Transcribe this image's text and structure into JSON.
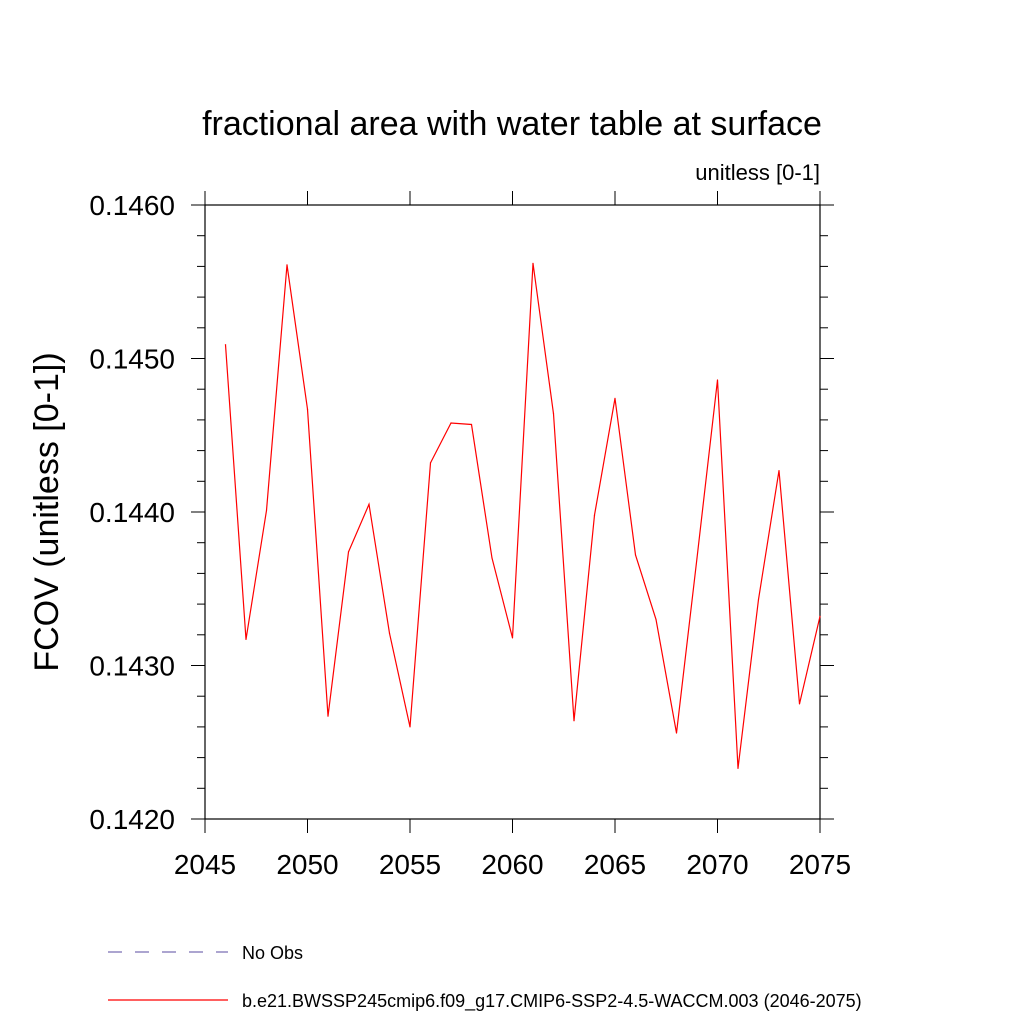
{
  "chart_data": {
    "type": "line",
    "title": "fractional area with water table at surface",
    "subtitle": "unitless [0-1]",
    "xlabel": "",
    "ylabel": "FCOV  (unitless [0-1])",
    "xlim": [
      2045,
      2075
    ],
    "ylim": [
      0.142,
      0.146
    ],
    "x_ticks": [
      2045,
      2050,
      2055,
      2060,
      2065,
      2070,
      2075
    ],
    "y_ticks": [
      0.142,
      0.143,
      0.144,
      0.145,
      0.146
    ],
    "x_tick_labels": [
      "2045",
      "2050",
      "2055",
      "2060",
      "2065",
      "2070",
      "2075"
    ],
    "y_tick_labels": [
      "0.1420",
      "0.1430",
      "0.1440",
      "0.1450",
      "0.1460"
    ],
    "grid": false,
    "series": [
      {
        "name": "b.e21.BWSSP245cmip6.f09_g17.CMIP6-SSP2-4.5-WACCM.003 (2046-2075)",
        "color": "#ff0000",
        "style": "solid",
        "x": [
          2046,
          2047,
          2048,
          2049,
          2050,
          2051,
          2052,
          2053,
          2054,
          2055,
          2056,
          2057,
          2058,
          2059,
          2060,
          2061,
          2062,
          2063,
          2064,
          2065,
          2066,
          2067,
          2068,
          2069,
          2070,
          2071,
          2072,
          2073,
          2074,
          2075
        ],
        "values": [
          0.14509,
          0.14317,
          0.14401,
          0.14561,
          0.14467,
          0.14267,
          0.14374,
          0.14405,
          0.14321,
          0.1426,
          0.14432,
          0.14458,
          0.14457,
          0.1437,
          0.14318,
          0.14562,
          0.14464,
          0.14264,
          0.14398,
          0.14474,
          0.14372,
          0.1433,
          0.14256,
          0.1437,
          0.14486,
          0.14233,
          0.14343,
          0.14427,
          0.14275,
          0.14332
        ]
      }
    ],
    "legend": [
      {
        "label": "No Obs",
        "color": "#7b6fb3",
        "style": "dashed"
      },
      {
        "label": "b.e21.BWSSP245cmip6.f09_g17.CMIP6-SSP2-4.5-WACCM.003 (2046-2075)",
        "color": "#ff0000",
        "style": "solid"
      }
    ]
  }
}
